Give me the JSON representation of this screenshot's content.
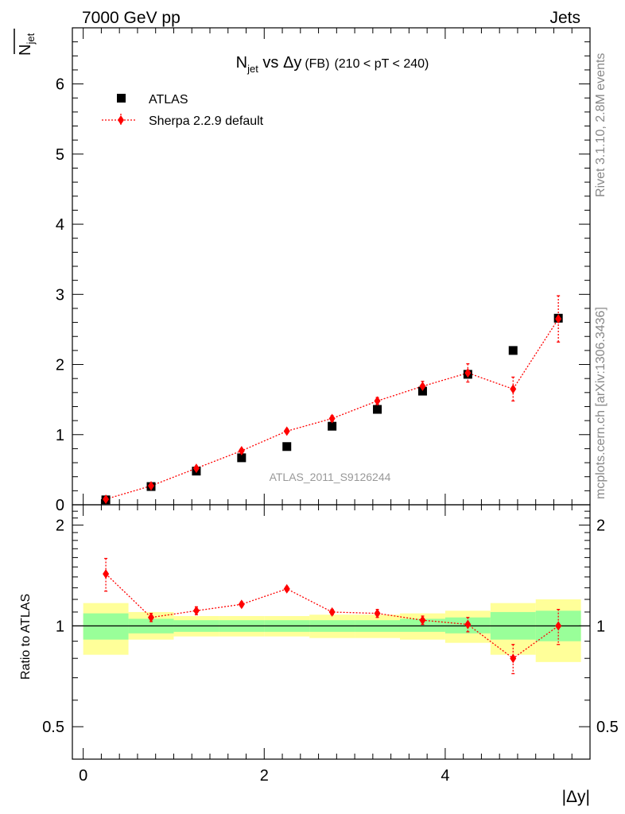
{
  "header": {
    "left": "7000 GeV pp",
    "right": "Jets"
  },
  "side_labels": {
    "rivet": "Rivet 3.1.10,  2.8M events",
    "mcplots": "mcplots.cern.ch [arXiv:1306.3436]"
  },
  "watermark": "ATLAS_2011_S9126244",
  "chart_data": {
    "type": "scatter",
    "title": {
      "n": "N",
      "n_sub": "jet",
      "vs": " vs ",
      "delta_y": "Δy",
      "fb": "(FB)",
      "range": "(210 < pT < 240)"
    },
    "ylabel_main": {
      "n": "N",
      "sub": "jet"
    },
    "ylabel_ratio": "Ratio to ATLAS",
    "xlabel": "|Δy|",
    "x_edges": [
      0,
      0.5,
      1.0,
      1.5,
      2.0,
      2.5,
      3.0,
      3.5,
      4.0,
      4.5,
      5.0,
      5.5
    ],
    "x_centers": [
      0.25,
      0.75,
      1.25,
      1.75,
      2.25,
      2.75,
      3.25,
      3.75,
      4.25,
      4.75,
      5.25
    ],
    "main": {
      "xlim": [
        -0.12,
        5.6
      ],
      "ylim": [
        0,
        6.8
      ],
      "yticks": [
        0,
        1,
        2,
        3,
        4,
        5,
        6
      ],
      "ytick_labels": [
        "0",
        "1",
        "2",
        "3",
        "4",
        "5",
        "6"
      ]
    },
    "ratio": {
      "ylim": [
        0.4,
        2.3
      ],
      "log": true,
      "yticks": [
        0.5,
        1,
        2
      ],
      "ytick_labels": [
        "0.5",
        "1",
        "2"
      ]
    },
    "xticks": [
      0,
      2,
      4
    ],
    "xtick_labels": [
      "0",
      "2",
      "4"
    ],
    "legend": {
      "position": "top-left"
    },
    "series": [
      {
        "name": "ATLAS",
        "color": "#000000",
        "marker": "square",
        "values": [
          0.07,
          0.26,
          0.48,
          0.67,
          0.83,
          1.12,
          1.36,
          1.62,
          1.86,
          2.2,
          2.66
        ],
        "band_green": [
          [
            0.91,
            1.09
          ],
          [
            0.95,
            1.05
          ],
          [
            0.96,
            1.04
          ],
          [
            0.96,
            1.04
          ],
          [
            0.96,
            1.04
          ],
          [
            0.96,
            1.04
          ],
          [
            0.96,
            1.04
          ],
          [
            0.96,
            1.05
          ],
          [
            0.95,
            1.06
          ],
          [
            0.91,
            1.1
          ],
          [
            0.9,
            1.11
          ]
        ],
        "band_yellow": [
          [
            0.82,
            1.17
          ],
          [
            0.91,
            1.1
          ],
          [
            0.93,
            1.07
          ],
          [
            0.93,
            1.07
          ],
          [
            0.93,
            1.07
          ],
          [
            0.92,
            1.08
          ],
          [
            0.92,
            1.08
          ],
          [
            0.91,
            1.09
          ],
          [
            0.89,
            1.11
          ],
          [
            0.82,
            1.17
          ],
          [
            0.78,
            1.2
          ]
        ]
      },
      {
        "name": "Sherpa 2.2.9 default",
        "color": "#ff0000",
        "marker": "diamond",
        "values": [
          0.08,
          0.27,
          0.52,
          0.77,
          1.05,
          1.23,
          1.48,
          1.69,
          1.88,
          1.65,
          2.65
        ],
        "errors": [
          0.02,
          0.02,
          0.03,
          0.03,
          0.03,
          0.04,
          0.05,
          0.07,
          0.13,
          0.17,
          0.33
        ],
        "ratio": [
          1.43,
          1.06,
          1.11,
          1.16,
          1.29,
          1.1,
          1.09,
          1.04,
          1.01,
          0.8,
          1.0
        ],
        "ratio_errors": [
          0.16,
          0.03,
          0.03,
          0.02,
          0.02,
          0.02,
          0.03,
          0.03,
          0.05,
          0.08,
          0.12
        ]
      }
    ]
  }
}
